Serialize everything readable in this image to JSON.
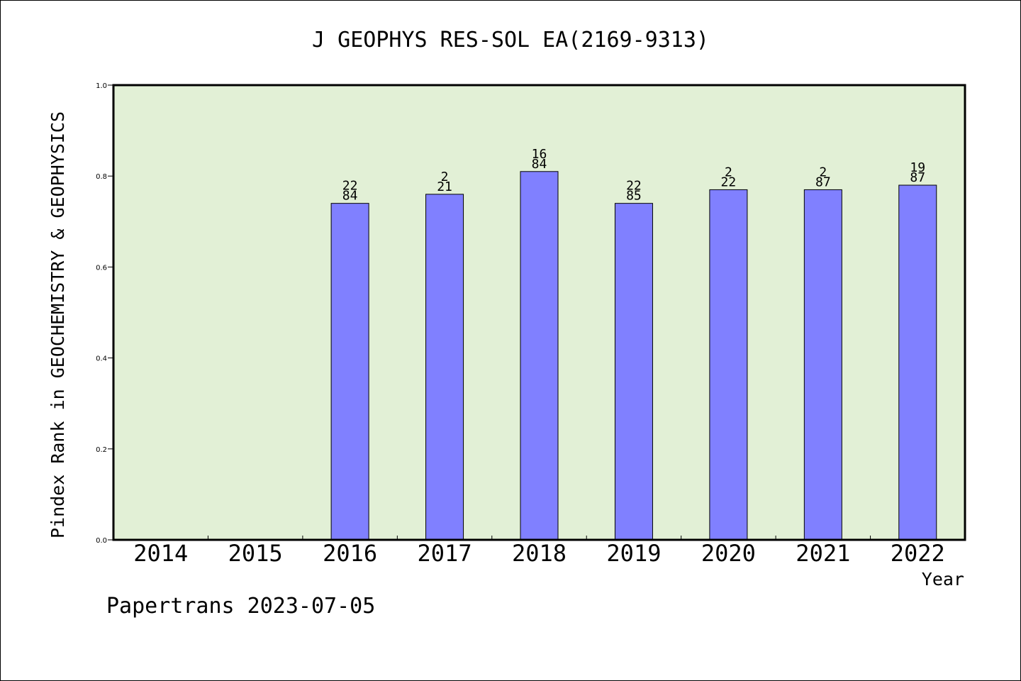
{
  "chart_data": {
    "type": "bar",
    "title": "J GEOPHYS RES-SOL EA(2169-9313)",
    "xlabel": "Year",
    "ylabel": "Pindex Rank in GEOCHEMISTRY & GEOPHYSICS",
    "footer": "Papertrans 2023-07-05",
    "categories": [
      "2014",
      "2015",
      "2016",
      "2017",
      "2018",
      "2019",
      "2020",
      "2021",
      "2022"
    ],
    "values": [
      null,
      null,
      0.74,
      0.76,
      0.81,
      0.74,
      0.77,
      0.77,
      0.78
    ],
    "labels_top": [
      "",
      "",
      "22",
      "2",
      "16",
      "22",
      "2",
      "2",
      "19"
    ],
    "labels_bottom": [
      "",
      "",
      "84",
      "21",
      "84",
      "85",
      "22",
      "87",
      "87"
    ],
    "ylim": [
      0,
      1.0
    ],
    "yticks": [
      "0.0",
      "0.2",
      "0.4",
      "0.6",
      "0.8",
      "1.0"
    ],
    "grid": false,
    "colors": {
      "plot_background": "#e2f0d6",
      "bar_fill": "#8080ff",
      "bar_stroke": "#000000",
      "axis": "#000000"
    }
  }
}
